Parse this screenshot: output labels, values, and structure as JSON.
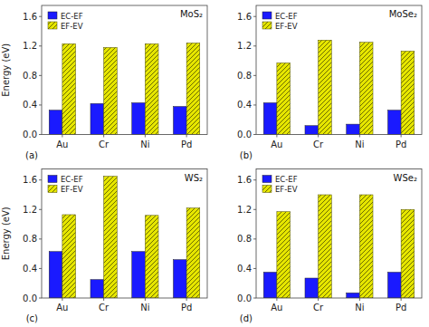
{
  "chart_data": [
    {
      "type": "bar",
      "title": "MoS₂",
      "annotations": [
        "(a)"
      ],
      "ylabel": "Energy (eV)",
      "categories": [
        "Au",
        "Cr",
        "Ni",
        "Pd"
      ],
      "series": [
        {
          "name": "EC-EF",
          "color": "#1a1aff",
          "values": [
            0.33,
            0.42,
            0.43,
            0.38
          ]
        },
        {
          "name": "EF-EV",
          "color": "#e6e600",
          "values": [
            1.23,
            1.18,
            1.23,
            1.24
          ]
        }
      ],
      "ylim": [
        0,
        1.75
      ],
      "yticks": [
        {
          "value": 0,
          "label": "0.0"
        },
        0.4,
        0.8,
        1.2,
        1.6
      ],
      "grid": false,
      "legend": "upper left"
    },
    {
      "type": "bar",
      "title": "MoSe₂",
      "annotations": [
        "(b)"
      ],
      "categories": [
        "Au",
        "Cr",
        "Ni",
        "Pd"
      ],
      "series": [
        {
          "name": "EC-EF",
          "color": "#1a1aff",
          "values": [
            0.43,
            0.12,
            0.14,
            0.33
          ]
        },
        {
          "name": "EF-EV",
          "color": "#e6e600",
          "values": [
            0.97,
            1.28,
            1.25,
            1.13
          ]
        }
      ],
      "ylim": [
        0,
        1.75
      ],
      "yticks": [
        {
          "value": 0,
          "label": "0.0"
        },
        0.4,
        0.8,
        1.2,
        1.6
      ],
      "grid": false,
      "legend": "upper left"
    },
    {
      "type": "bar",
      "title": "WS₂",
      "annotations": [
        "(c)"
      ],
      "ylabel": "Energy (eV)",
      "categories": [
        "Au",
        "Cr",
        "Ni",
        "Pd"
      ],
      "series": [
        {
          "name": "EC-EF",
          "color": "#1a1aff",
          "values": [
            0.63,
            0.25,
            0.63,
            0.52
          ]
        },
        {
          "name": "EF-EV",
          "color": "#e6e600",
          "values": [
            1.13,
            1.65,
            1.12,
            1.22
          ]
        }
      ],
      "ylim": [
        0,
        1.75
      ],
      "yticks": [
        {
          "value": 0,
          "label": "0.0"
        },
        0.4,
        0.8,
        1.2,
        1.6
      ],
      "grid": false,
      "legend": "upper left"
    },
    {
      "type": "bar",
      "title": "WSe₂",
      "annotations": [
        "(d)"
      ],
      "categories": [
        "Au",
        "Cr",
        "Ni",
        "Pd"
      ],
      "series": [
        {
          "name": "EC-EF",
          "color": "#1a1aff",
          "values": [
            0.35,
            0.27,
            0.07,
            0.35
          ]
        },
        {
          "name": "EF-EV",
          "color": "#e6e600",
          "values": [
            1.17,
            1.4,
            1.4,
            1.2
          ]
        }
      ],
      "ylim": [
        0,
        1.75
      ],
      "yticks": [
        {
          "value": 0,
          "label": "0.0"
        },
        0.4,
        0.8,
        1.2,
        1.6
      ],
      "grid": false,
      "legend": "upper left"
    }
  ]
}
